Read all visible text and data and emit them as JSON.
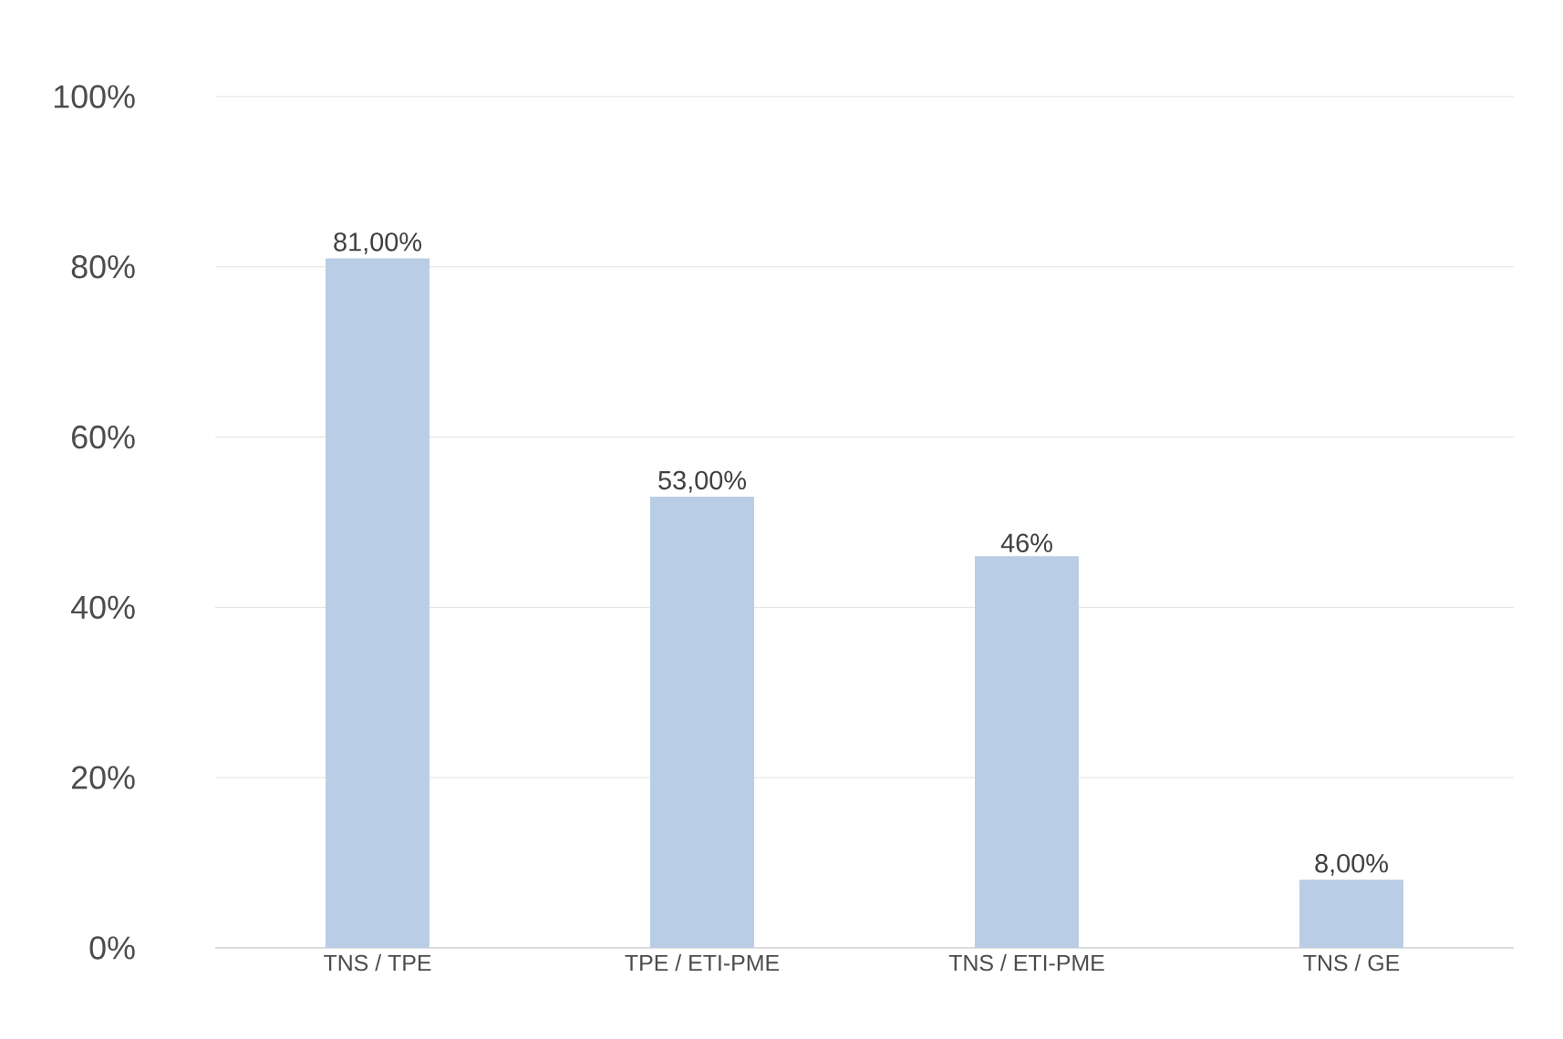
{
  "chart_data": {
    "type": "bar",
    "categories": [
      "TNS / TPE",
      "TPE / ETI-PME",
      "TNS / ETI-PME",
      "TNS / GE"
    ],
    "values": [
      81,
      53,
      46,
      8
    ],
    "value_labels": [
      "81,00%",
      "53,00%",
      "46%",
      "8,00%"
    ],
    "color": "#b9cde5",
    "ylim": [
      0,
      100
    ],
    "yticks": [
      {
        "value": 0,
        "label": "0%"
      },
      {
        "value": 20,
        "label": "20%"
      },
      {
        "value": 40,
        "label": "40%"
      },
      {
        "value": 60,
        "label": "60%"
      },
      {
        "value": 80,
        "label": "80%"
      },
      {
        "value": 100,
        "label": "100%"
      }
    ],
    "grid": "y"
  }
}
